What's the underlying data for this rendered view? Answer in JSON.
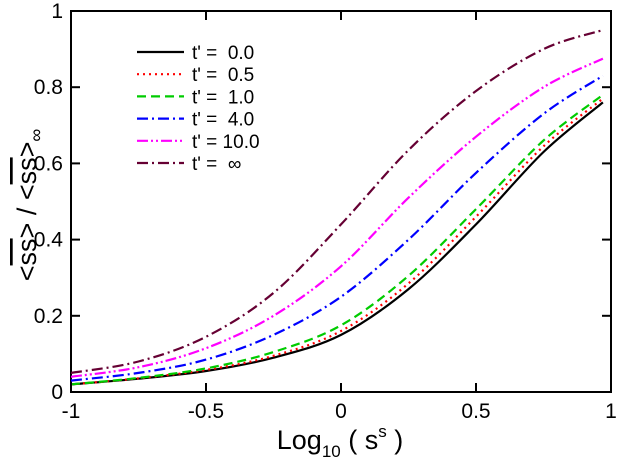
{
  "chart_data": {
    "type": "line",
    "xlabel": "Log10 ( s^s )",
    "xlabel_parts": {
      "main": "Log",
      "sub": "10",
      "mid": " ( s",
      "sup": "s",
      "end": " )"
    },
    "ylabel": "<ss> / <ss>∞",
    "ylabel_parts": {
      "open1": "<",
      "ss1": "ss",
      "mid": "> / <",
      "ss2": "ss",
      "close": ">",
      "sub": "∞"
    },
    "xlim": [
      -1,
      1
    ],
    "ylim": [
      0,
      1
    ],
    "xticks": [
      -1,
      -0.5,
      0,
      0.5,
      1
    ],
    "xtick_labels": [
      "-1",
      "-0.5",
      "0",
      "0.5",
      "1"
    ],
    "yticks": [
      0,
      0.2,
      0.4,
      0.6,
      0.8,
      1
    ],
    "ytick_labels": [
      "0",
      "0.2",
      "0.4",
      "0.6",
      "0.8",
      "1"
    ],
    "legend_position": "top-left",
    "x": [
      -1.0,
      -0.75,
      -0.5,
      -0.25,
      0.0,
      0.25,
      0.5,
      0.75,
      0.97
    ],
    "series": [
      {
        "name": "t' =  0.0",
        "color": "#000000",
        "dash": "solid",
        "values": [
          0.02,
          0.035,
          0.055,
          0.09,
          0.15,
          0.27,
          0.44,
          0.63,
          0.76
        ]
      },
      {
        "name": "t' =  0.5",
        "color": "#ff0000",
        "dash": "dotted",
        "values": [
          0.02,
          0.036,
          0.058,
          0.095,
          0.16,
          0.285,
          0.46,
          0.645,
          0.77
        ]
      },
      {
        "name": "t' =  1.0",
        "color": "#00cc00",
        "dash": "dashed",
        "values": [
          0.02,
          0.037,
          0.062,
          0.105,
          0.175,
          0.305,
          0.48,
          0.66,
          0.78
        ]
      },
      {
        "name": "t' =  4.0",
        "color": "#0000ff",
        "dash": "dash-dot",
        "values": [
          0.03,
          0.05,
          0.085,
          0.15,
          0.25,
          0.4,
          0.575,
          0.73,
          0.83
        ]
      },
      {
        "name": "t' = 10.0",
        "color": "#ff00ff",
        "dash": "dash-dot-dot",
        "values": [
          0.04,
          0.065,
          0.115,
          0.2,
          0.33,
          0.51,
          0.67,
          0.8,
          0.875
        ]
      },
      {
        "name": "t' =  ∞",
        "color": "#660033",
        "dash": "dash-dot",
        "values": [
          0.05,
          0.08,
          0.145,
          0.26,
          0.44,
          0.635,
          0.79,
          0.9,
          0.95
        ]
      }
    ]
  }
}
